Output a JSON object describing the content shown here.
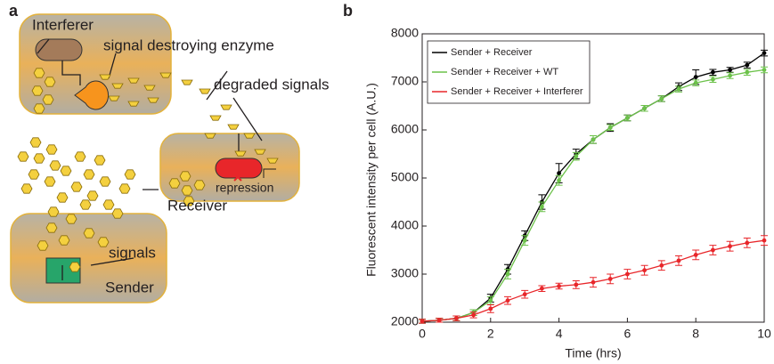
{
  "panels": [
    "a",
    "b"
  ],
  "diagram": {
    "interferer": "Interferer",
    "enzyme": "signal destroying enzyme",
    "degraded": "degraded signals",
    "repression": "repression",
    "receiver": "Receiver",
    "signals": "signals",
    "sender": "Sender"
  },
  "chart_data": {
    "type": "line",
    "x_label": "Time (hrs)",
    "y_label": "Fluorescent intensity per cell (A.U.)",
    "x": [
      0,
      0.5,
      1,
      1.5,
      2,
      2.5,
      3,
      3.5,
      4,
      4.5,
      5,
      5.5,
      6,
      6.5,
      7,
      7.5,
      8,
      8.5,
      9,
      9.5,
      10
    ],
    "series": [
      {
        "name": "Sender + Receiver",
        "color": "#000000",
        "values": [
          2020,
          2040,
          2080,
          2200,
          2500,
          3100,
          3800,
          4500,
          5100,
          5500,
          5800,
          6050,
          6250,
          6450,
          6650,
          6900,
          7100,
          7200,
          7250,
          7350,
          7600
        ],
        "errors": [
          40,
          40,
          50,
          60,
          80,
          100,
          100,
          150,
          200,
          100,
          80,
          80,
          60,
          60,
          60,
          80,
          150,
          60,
          50,
          60,
          60
        ]
      },
      {
        "name": "Sender + Receiver + WT",
        "color": "#6cc24a",
        "values": [
          2020,
          2040,
          2080,
          2200,
          2450,
          3000,
          3700,
          4400,
          4950,
          5450,
          5800,
          6050,
          6250,
          6450,
          6650,
          6850,
          6980,
          7050,
          7130,
          7200,
          7250
        ],
        "errors": [
          40,
          40,
          50,
          60,
          80,
          100,
          100,
          100,
          100,
          80,
          80,
          60,
          60,
          60,
          60,
          60,
          60,
          60,
          60,
          60,
          60
        ]
      },
      {
        "name": "Sender + Receiver + Interferer",
        "color": "#e8262a",
        "values": [
          2020,
          2040,
          2080,
          2150,
          2280,
          2450,
          2580,
          2700,
          2750,
          2780,
          2830,
          2900,
          3000,
          3080,
          3180,
          3280,
          3400,
          3500,
          3580,
          3650,
          3700
        ],
        "errors": [
          40,
          40,
          50,
          60,
          80,
          80,
          80,
          60,
          60,
          80,
          100,
          100,
          100,
          100,
          100,
          100,
          100,
          100,
          100,
          100,
          100
        ]
      }
    ],
    "xlim": [
      0,
      10
    ],
    "xticks": [
      0,
      2,
      4,
      6,
      8,
      10
    ],
    "ylim": [
      2000,
      8000
    ],
    "yticks": [
      2000,
      3000,
      4000,
      5000,
      6000,
      7000,
      8000
    ],
    "legend": "upper left"
  }
}
